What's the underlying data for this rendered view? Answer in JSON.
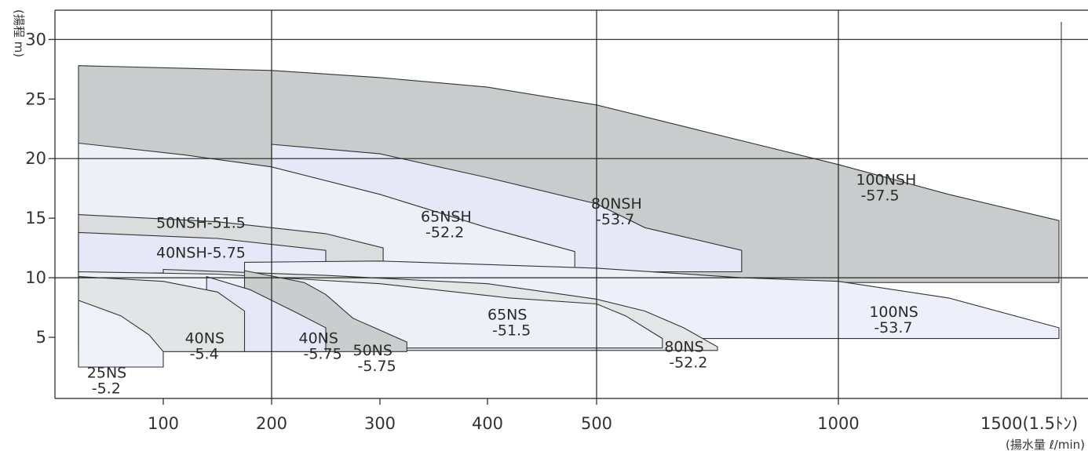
{
  "chart_data": {
    "type": "area",
    "axes": {
      "ylabel": "(揚程 m)",
      "xlabel_unit": "(揚水量 ℓ/min)",
      "y_ticks": [
        {
          "value": 5,
          "label": "5"
        },
        {
          "value": 10,
          "label": "10"
        },
        {
          "value": 15,
          "label": "15"
        },
        {
          "value": 20,
          "label": "20"
        },
        {
          "value": 25,
          "label": "25"
        },
        {
          "value": 30,
          "label": "30"
        }
      ],
      "x_ticks": [
        {
          "value": 100,
          "label": "100"
        },
        {
          "value": 200,
          "label": "200"
        },
        {
          "value": 300,
          "label": "300"
        },
        {
          "value": 400,
          "label": "400"
        },
        {
          "value": 500,
          "label": "500"
        },
        {
          "value": 1000,
          "label": "1000"
        },
        {
          "value": 1500,
          "label": "1500(1.5ﾄﾝ)"
        }
      ],
      "x_grid": [
        200,
        500,
        1000
      ],
      "y_grid": [
        10,
        20,
        30
      ],
      "ylim": [
        0,
        32
      ],
      "x_scale": "piecewise"
    },
    "series": [
      {
        "name": "100NSH",
        "label_lines": [
          "100NSH",
          "-57.5"
        ],
        "fill": "#c8cccd",
        "label_at": [
          1040,
          17.8
        ],
        "points": [
          [
            40,
            27.8
          ],
          [
            200,
            27.4
          ],
          [
            300,
            26.8
          ],
          [
            400,
            26
          ],
          [
            500,
            24.5
          ],
          [
            700,
            22.5
          ],
          [
            1000,
            19.5
          ],
          [
            1250,
            17
          ],
          [
            1500,
            14.8
          ],
          [
            1500,
            9.6
          ],
          [
            40,
            9.6
          ]
        ]
      },
      {
        "name": "80NSH",
        "label_lines": [
          "80NSH",
          "-53.7"
        ],
        "fill": "#e7e8f7",
        "label_at": [
          495,
          15.8
        ],
        "points": [
          [
            200,
            21.2
          ],
          [
            300,
            20.4
          ],
          [
            400,
            18.4
          ],
          [
            500,
            16.2
          ],
          [
            600,
            14.2
          ],
          [
            800,
            12.3
          ],
          [
            800,
            10.5
          ],
          [
            200,
            10.5
          ]
        ]
      },
      {
        "name": "65NSH",
        "label_lines": [
          "65NSH",
          "-52.2"
        ],
        "fill": "#eef0f8",
        "label_at": [
          338,
          14.7
        ],
        "points": [
          [
            40,
            21.3
          ],
          [
            120,
            20.3
          ],
          [
            200,
            19.3
          ],
          [
            300,
            17
          ],
          [
            400,
            14.2
          ],
          [
            480,
            12.2
          ],
          [
            480,
            10.4
          ],
          [
            40,
            10.4
          ]
        ]
      },
      {
        "name": "50NSH-51.5",
        "label_lines": [
          "50NSH-51.5"
        ],
        "fill": "#dadcdd",
        "label_at": [
          95,
          14.2
        ],
        "points": [
          [
            40,
            15.3
          ],
          [
            150,
            14.7
          ],
          [
            250,
            13.7
          ],
          [
            303,
            12.5
          ],
          [
            303,
            10.2
          ],
          [
            40,
            10.2
          ]
        ]
      },
      {
        "name": "40NSH-5.75",
        "label_lines": [
          "40NSH-5.75"
        ],
        "fill": "#e7e8f7",
        "label_at": [
          95,
          11.7
        ],
        "points": [
          [
            40,
            13.8
          ],
          [
            150,
            13.3
          ],
          [
            250,
            12.3
          ],
          [
            250,
            10.4
          ],
          [
            40,
            10.4
          ]
        ]
      },
      {
        "name": "100NS",
        "label_lines": [
          "100NS",
          "-53.7"
        ],
        "fill": "#edf0f8",
        "label_at": [
          1070,
          6.7
        ],
        "points": [
          [
            175,
            11.3
          ],
          [
            300,
            11.4
          ],
          [
            500,
            10.8
          ],
          [
            800,
            10
          ],
          [
            1000,
            9.7
          ],
          [
            1250,
            8.3
          ],
          [
            1500,
            5.8
          ],
          [
            1500,
            4.9
          ],
          [
            750,
            4.9
          ],
          [
            175,
            4.9
          ]
        ]
      },
      {
        "name": "80NS",
        "label_lines": [
          "80NS",
          "-52.2"
        ],
        "fill": "#e3e5e6",
        "label_at": [
          640,
          3.8
        ],
        "points": [
          [
            100,
            10.7
          ],
          [
            250,
            10.2
          ],
          [
            400,
            9.5
          ],
          [
            500,
            8.2
          ],
          [
            600,
            7.2
          ],
          [
            680,
            5.8
          ],
          [
            750,
            4.2
          ],
          [
            750,
            3.9
          ],
          [
            636,
            3.9
          ],
          [
            100,
            3.9
          ]
        ]
      },
      {
        "name": "65NS",
        "label_lines": [
          "65NS",
          "-51.5"
        ],
        "fill": "#eef0f8",
        "label_at": [
          400,
          6.5
        ],
        "points": [
          [
            40,
            10.5
          ],
          [
            150,
            10.3
          ],
          [
            300,
            9.5
          ],
          [
            420,
            8.3
          ],
          [
            500,
            7.8
          ],
          [
            560,
            6.8
          ],
          [
            636,
            4.9
          ],
          [
            636,
            4.1
          ],
          [
            325,
            4.1
          ],
          [
            40,
            4.1
          ]
        ]
      },
      {
        "name": "50NS",
        "label_lines": [
          "50NS",
          "-5.75"
        ],
        "fill": "#c9cdce",
        "label_at": [
          275,
          3.5
        ],
        "points": [
          [
            175,
            10.6
          ],
          [
            230,
            9.6
          ],
          [
            250,
            8.6
          ],
          [
            275,
            6.6
          ],
          [
            300,
            5.6
          ],
          [
            325,
            4.6
          ],
          [
            325,
            3.8
          ],
          [
            175,
            3.8
          ]
        ]
      },
      {
        "name": "40NS",
        "label_lines": [
          "40NS",
          "-5.75"
        ],
        "fill": "#e6e7f7",
        "label_at": [
          225,
          4.5
        ],
        "points": [
          [
            140,
            10.1
          ],
          [
            180,
            9
          ],
          [
            220,
            7.2
          ],
          [
            250,
            5.8
          ],
          [
            250,
            3.8
          ],
          [
            140,
            3.8
          ]
        ]
      },
      {
        "name": "40NS",
        "label_lines": [
          "40NS",
          "-5.4"
        ],
        "fill": "#e2e5e5",
        "label_at": [
          120,
          4.5
        ],
        "points": [
          [
            40,
            10.1
          ],
          [
            100,
            9.7
          ],
          [
            150,
            8.8
          ],
          [
            175,
            7.2
          ],
          [
            175,
            3.8
          ],
          [
            40,
            3.8
          ]
        ]
      },
      {
        "name": "25NS",
        "label_lines": [
          "25NS",
          "-5.2"
        ],
        "fill": "#eef1f8",
        "label_at": [
          46,
          1.6
        ],
        "points": [
          [
            40,
            8.1
          ],
          [
            70,
            6.8
          ],
          [
            90,
            5.2
          ],
          [
            100,
            3.8
          ],
          [
            100,
            2.5
          ],
          [
            40,
            2.5
          ]
        ]
      }
    ]
  }
}
